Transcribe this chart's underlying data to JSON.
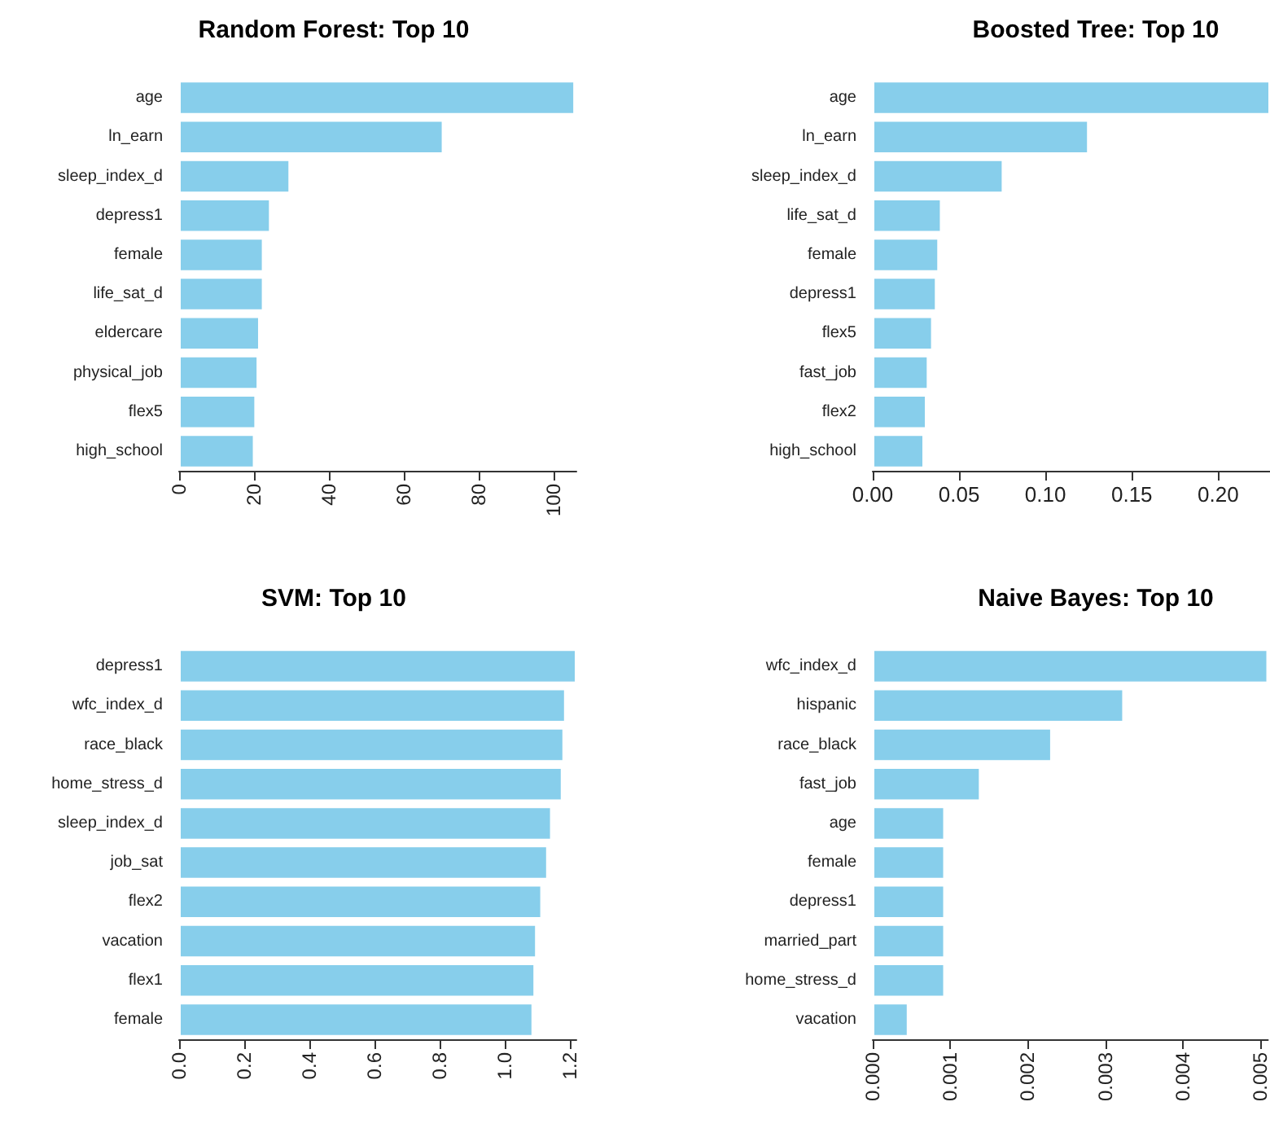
{
  "chart_data": [
    {
      "type": "bar",
      "orientation": "horizontal",
      "title": "Random Forest: Top 10",
      "categories": [
        "age",
        "ln_earn",
        "sleep_index_d",
        "depress1",
        "female",
        "life_sat_d",
        "eldercare",
        "physical_job",
        "flex5",
        "high_school"
      ],
      "values": [
        105.6,
        70.5,
        29.6,
        24.4,
        22.5,
        22.5,
        21.5,
        21.1,
        20.5,
        20.1
      ],
      "color": "#87ceeb",
      "xlim": [
        0,
        106
      ],
      "xticks": [
        0,
        20,
        40,
        60,
        80,
        100
      ],
      "grid": false
    },
    {
      "type": "bar",
      "orientation": "horizontal",
      "title": "Boosted Tree: Top 10",
      "categories": [
        "age",
        "ln_earn",
        "sleep_index_d",
        "life_sat_d",
        "female",
        "depress1",
        "flex5",
        "fast_job",
        "flex2",
        "high_school"
      ],
      "values": [
        0.23,
        0.125,
        0.0756,
        0.0398,
        0.0383,
        0.0369,
        0.0347,
        0.0322,
        0.0311,
        0.0297
      ],
      "color": "#87ceeb",
      "xlim": [
        0,
        0.23
      ],
      "xticks": [
        {
          "value": 0,
          "label": "0.00"
        },
        {
          "value": 0.05,
          "label": "0.05"
        },
        {
          "value": 0.1,
          "label": "0.10"
        },
        {
          "value": 0.15,
          "label": "0.15"
        },
        {
          "value": 0.2,
          "label": "0.20"
        }
      ],
      "grid": false
    },
    {
      "type": "bar",
      "orientation": "horizontal",
      "title": "SVM: Top 10",
      "categories": [
        "depress1",
        "wfc_index_d",
        "race_black",
        "home_stress_d",
        "sleep_index_d",
        "job_sat",
        "flex2",
        "vacation",
        "flex1",
        "female"
      ],
      "values": [
        1.22,
        1.187,
        1.182,
        1.177,
        1.144,
        1.132,
        1.114,
        1.098,
        1.093,
        1.087
      ],
      "color": "#87ceeb",
      "xlim": [
        0,
        1.22
      ],
      "xticks": [
        {
          "value": 0,
          "label": "0.0"
        },
        {
          "value": 0.2,
          "label": "0.2"
        },
        {
          "value": 0.4,
          "label": "0.4"
        },
        {
          "value": 0.6,
          "label": "0.6"
        },
        {
          "value": 0.8,
          "label": "0.8"
        },
        {
          "value": 1,
          "label": "1.0"
        },
        {
          "value": 1.2,
          "label": "1.2"
        }
      ],
      "grid": false
    },
    {
      "type": "bar",
      "orientation": "horizontal",
      "title": "Naive Bayes: Top 10",
      "categories": [
        "wfc_index_d",
        "hispanic",
        "race_black",
        "fast_job",
        "age",
        "female",
        "depress1",
        "married_part",
        "home_stress_d",
        "vacation"
      ],
      "values": [
        0.0051,
        0.00324,
        0.00231,
        0.00139,
        0.00093,
        0.00093,
        0.00093,
        0.00093,
        0.00093,
        0.00046
      ],
      "color": "#87ceeb",
      "xlim": [
        0,
        0.0051
      ],
      "xticks": [
        {
          "value": 0,
          "label": "0.000"
        },
        {
          "value": 0.001,
          "label": "0.001"
        },
        {
          "value": 0.002,
          "label": "0.002"
        },
        {
          "value": 0.003,
          "label": "0.003"
        },
        {
          "value": 0.004,
          "label": "0.004"
        },
        {
          "value": 0.005,
          "label": "0.005"
        }
      ],
      "grid": false
    }
  ]
}
